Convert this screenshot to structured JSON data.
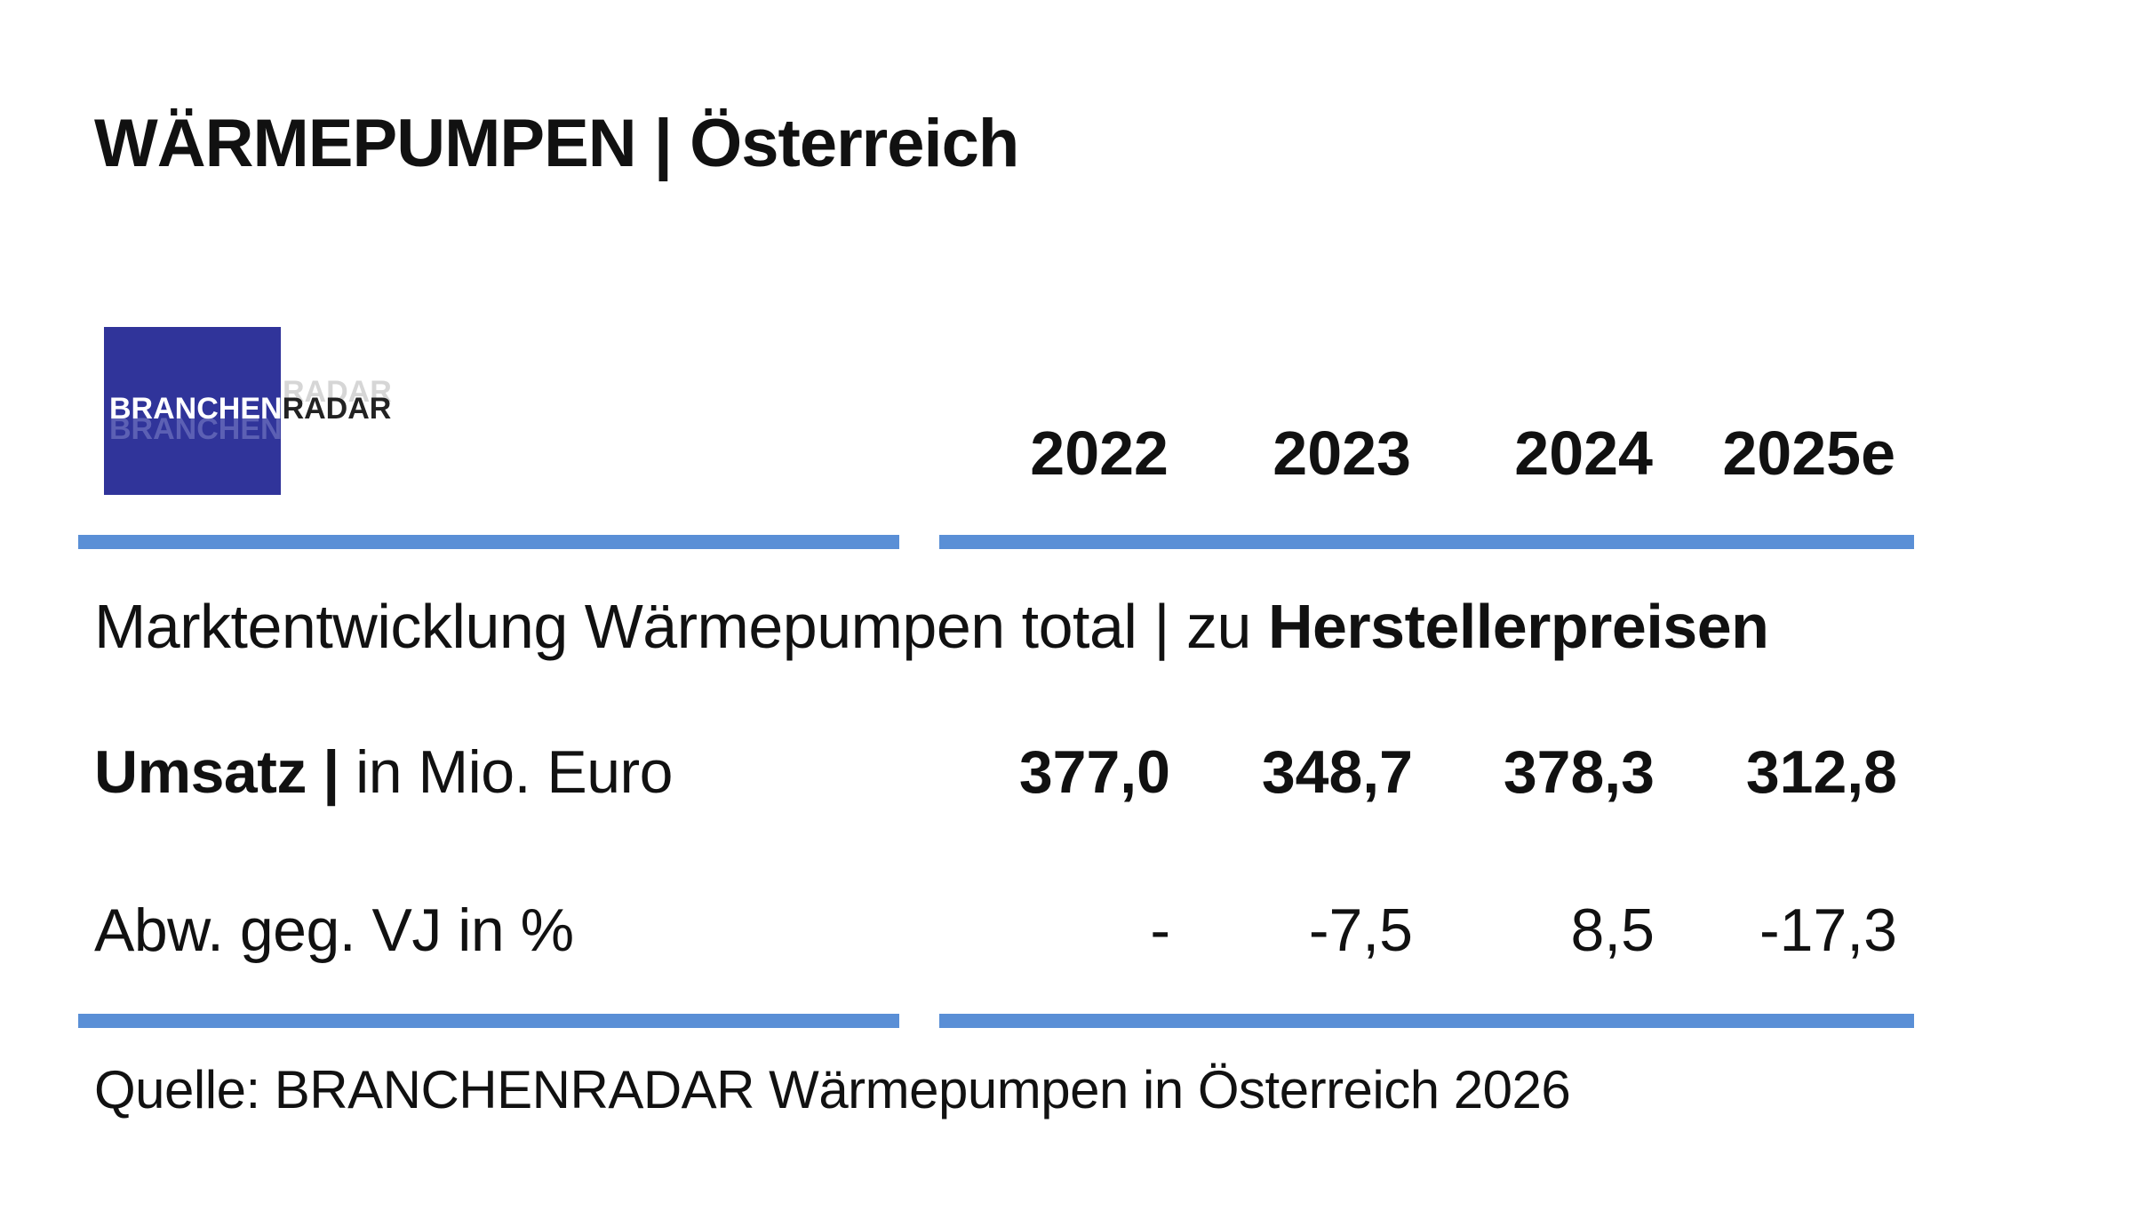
{
  "header": {
    "title": "WÄRMEPUMPEN | Österreich"
  },
  "logo": {
    "part1": "BRANCHEN",
    "part2": "RADAR",
    "background_color": "#30349a"
  },
  "table": {
    "subtitle_regular": "Marktentwicklung Wärmepumpen total | zu ",
    "subtitle_bold": "Herstellerpreisen",
    "rows": [
      {
        "label_bold": "Umsatz |",
        "label_regular": " in Mio. Euro",
        "values": [
          "377,0",
          "348,7",
          "378,3",
          "312,8"
        ]
      },
      {
        "label_bold": "",
        "label_regular": "Abw. geg. VJ in %",
        "values": [
          "-",
          "-7,5",
          "8,5",
          "-17,3"
        ]
      }
    ],
    "rule_color": "#5a8fd6"
  },
  "chart_data": {
    "type": "table",
    "title": "WÄRMEPUMPEN | Österreich",
    "subtitle": "Marktentwicklung Wärmepumpen total | zu Herstellerpreisen",
    "columns": [
      "2022",
      "2023",
      "2024",
      "2025e"
    ],
    "series": [
      {
        "name": "Umsatz | in Mio. Euro",
        "values": [
          377.0,
          348.7,
          378.3,
          312.8
        ]
      },
      {
        "name": "Abw. geg. VJ in %",
        "values": [
          null,
          -7.5,
          8.5,
          -17.3
        ]
      }
    ]
  },
  "footer": {
    "source": "Quelle: BRANCHENRADAR Wärmepumpen in Österreich 2026"
  }
}
